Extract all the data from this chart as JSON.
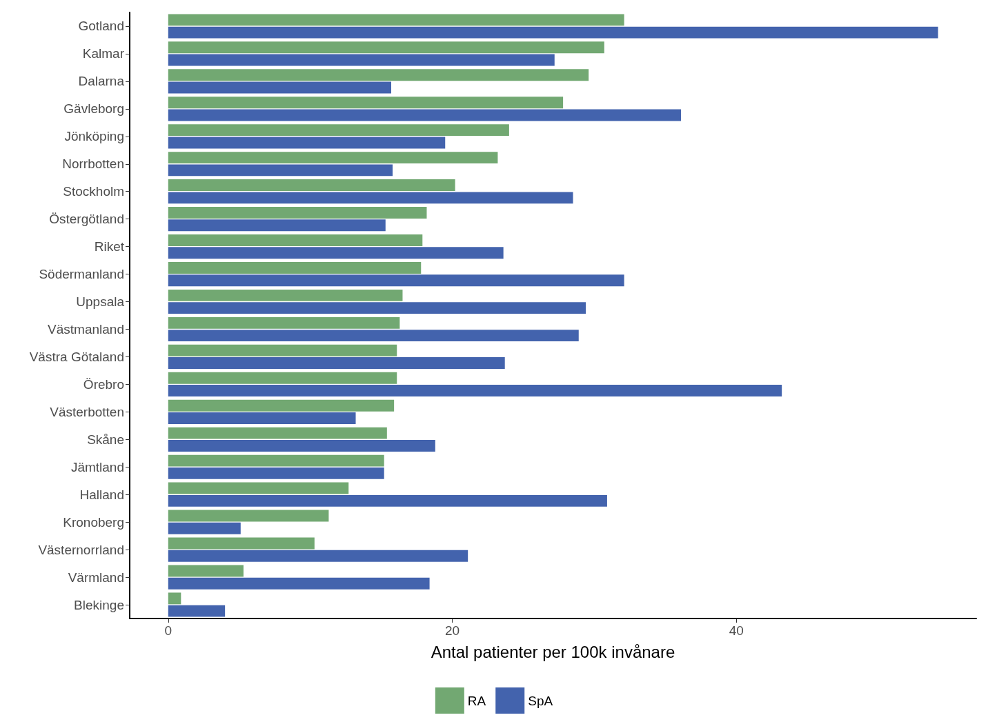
{
  "chart_data": {
    "type": "bar",
    "orientation": "horizontal",
    "xlabel": "Antal patienter per 100k invånare",
    "categories": [
      "Gotland",
      "Kalmar",
      "Dalarna",
      "Gävleborg",
      "Jönköping",
      "Norrbotten",
      "Stockholm",
      "Östergötland",
      "Riket",
      "Södermanland",
      "Uppsala",
      "Västmanland",
      "Västra Götaland",
      "Örebro",
      "Västerbotten",
      "Skåne",
      "Jämtland",
      "Halland",
      "Kronoberg",
      "Västernorrland",
      "Värmland",
      "Blekinge"
    ],
    "series": [
      {
        "name": "RA",
        "color": "#72a872",
        "values": [
          32.1,
          30.7,
          29.6,
          27.8,
          24.0,
          23.2,
          20.2,
          18.2,
          17.9,
          17.8,
          16.5,
          16.3,
          16.1,
          16.1,
          15.9,
          15.4,
          15.2,
          12.7,
          11.3,
          10.3,
          5.3,
          0.9
        ]
      },
      {
        "name": "SpA",
        "color": "#4363ad",
        "values": [
          54.2,
          27.2,
          15.7,
          36.1,
          19.5,
          15.8,
          28.5,
          15.3,
          23.6,
          32.1,
          29.4,
          28.9,
          23.7,
          43.2,
          13.2,
          18.8,
          15.2,
          30.9,
          5.1,
          21.1,
          18.4,
          4.0
        ]
      }
    ],
    "xlim": [
      -2.71,
      56.89
    ],
    "xticks": [
      0,
      20,
      40
    ],
    "grid": false,
    "legend": "bottom"
  }
}
